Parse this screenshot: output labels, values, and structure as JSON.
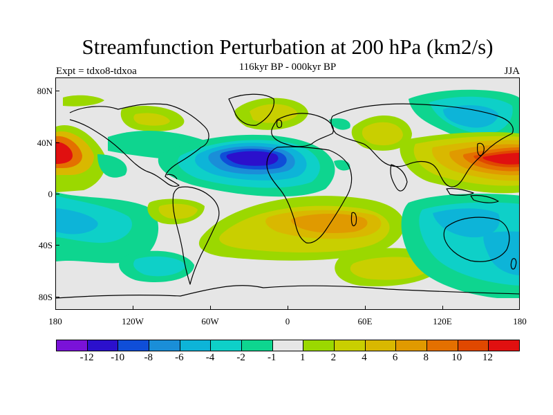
{
  "title": "Streamfunction Perturbation at 200 hPa (km2/s)",
  "subtitle": "116kyr BP - 000kyr BP",
  "experiment": "Expt = tdxo8-tdxoa",
  "season": "JJA",
  "latitude_labels": [
    "80N",
    "40N",
    "0",
    "40S",
    "80S"
  ],
  "longitude_labels": [
    "180",
    "120W",
    "60W",
    "0",
    "60E",
    "120E",
    "180"
  ],
  "colorbar": {
    "colors": [
      "#7a12d8",
      "#2b10cc",
      "#0f4ed8",
      "#1a8ed8",
      "#0db4d8",
      "#0ed0c8",
      "#0ed58f",
      "#e6e6e6",
      "#9bd800",
      "#c9cf00",
      "#d9b800",
      "#e09a00",
      "#e47000",
      "#e04800",
      "#e01010"
    ],
    "labels": [
      "-12",
      "-10",
      "-8",
      "-6",
      "-4",
      "-2",
      "-1",
      "1",
      "2",
      "4",
      "6",
      "8",
      "10",
      "12"
    ]
  }
}
